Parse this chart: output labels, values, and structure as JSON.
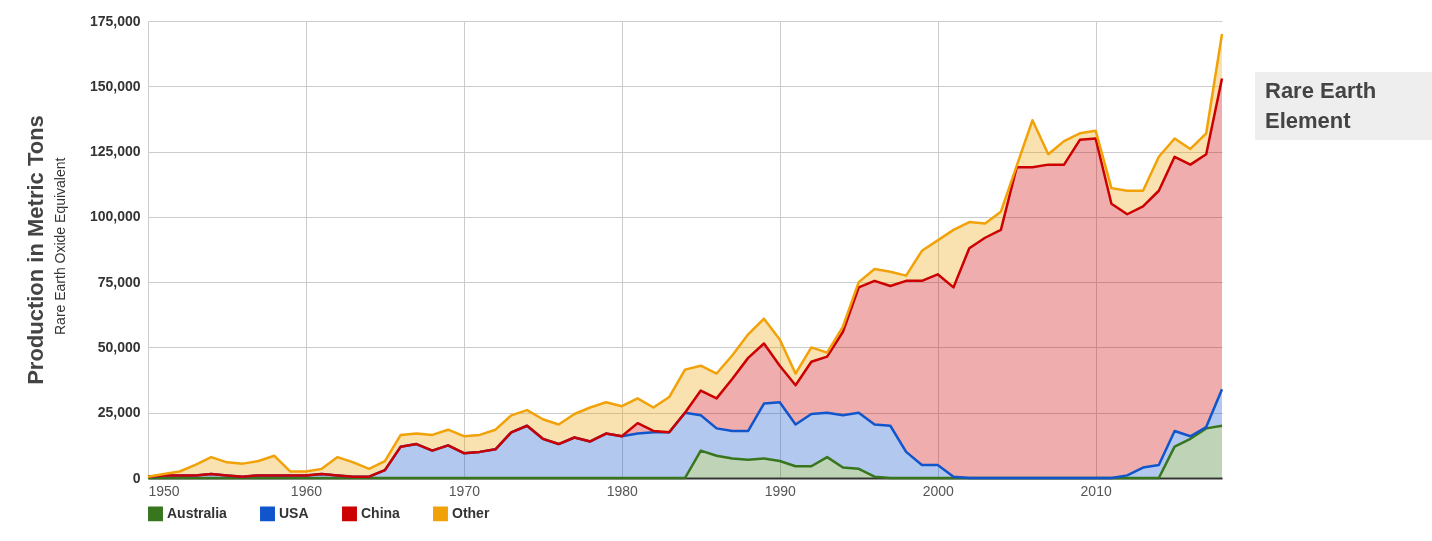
{
  "chart_data": {
    "type": "area",
    "title": "Rare Earth Element",
    "ylabel": "Production in Metric Tons",
    "annotations": [
      "Rare Earth Oxide Equivalent"
    ],
    "stacked": true,
    "grid": true,
    "legend": "bottom",
    "x": [
      1950,
      1951,
      1952,
      1953,
      1954,
      1955,
      1956,
      1957,
      1958,
      1959,
      1960,
      1961,
      1962,
      1963,
      1964,
      1965,
      1966,
      1967,
      1968,
      1969,
      1970,
      1971,
      1972,
      1973,
      1974,
      1975,
      1976,
      1977,
      1978,
      1979,
      1980,
      1981,
      1982,
      1983,
      1984,
      1985,
      1986,
      1987,
      1988,
      1989,
      1990,
      1991,
      1992,
      1993,
      1994,
      1995,
      1996,
      1997,
      1998,
      1999,
      2000,
      2001,
      2002,
      2003,
      2004,
      2005,
      2006,
      2007,
      2008,
      2009,
      2010,
      2011,
      2012,
      2013,
      2014,
      2015,
      2016,
      2017,
      2018
    ],
    "xlim": [
      1950,
      2018
    ],
    "xticks": [
      1950,
      1960,
      1970,
      1980,
      1990,
      2000,
      2010
    ],
    "ylim": [
      0,
      175000
    ],
    "yticks": [
      {
        "value": 0,
        "label": "0"
      },
      {
        "value": 25000,
        "label": "25,000"
      },
      {
        "value": 50000,
        "label": "50,000"
      },
      {
        "value": 75000,
        "label": "75,000"
      },
      {
        "value": 100000,
        "label": "100,000"
      },
      {
        "value": 125000,
        "label": "125,000"
      },
      {
        "value": 150000,
        "label": "150,000"
      },
      {
        "value": 175000,
        "label": "175,000"
      }
    ],
    "series": [
      {
        "name": "Australia",
        "color": "#38761d",
        "values": [
          0,
          0,
          0,
          0,
          0,
          0,
          0,
          0,
          0,
          0,
          0,
          0,
          0,
          0,
          0,
          0,
          0,
          0,
          0,
          0,
          0,
          0,
          0,
          0,
          0,
          0,
          0,
          0,
          0,
          0,
          0,
          0,
          0,
          0,
          0,
          10500,
          8500,
          7500,
          7000,
          7500,
          6500,
          4500,
          4500,
          8000,
          4000,
          3500,
          500,
          0,
          0,
          0,
          0,
          0,
          0,
          0,
          0,
          0,
          0,
          0,
          0,
          0,
          0,
          0,
          0,
          0,
          0,
          12000,
          15000,
          19000,
          20000
        ]
      },
      {
        "name": "USA",
        "color": "#1155cc",
        "values": [
          500,
          1000,
          1000,
          1000,
          1500,
          1000,
          500,
          1000,
          1000,
          1000,
          1000,
          1500,
          1000,
          500,
          500,
          3000,
          12000,
          13000,
          10500,
          12500,
          9500,
          10000,
          11000,
          17500,
          20000,
          15000,
          13000,
          15500,
          14000,
          17000,
          16000,
          17000,
          17500,
          17500,
          25000,
          13500,
          10500,
          10500,
          11000,
          21000,
          22500,
          16000,
          20000,
          17000,
          20000,
          21500,
          20000,
          20000,
          10000,
          5000,
          5000,
          500,
          0,
          0,
          0,
          0,
          0,
          0,
          0,
          0,
          0,
          0,
          1000,
          4000,
          5000,
          6000,
          1000,
          500,
          14000
        ]
      },
      {
        "name": "China",
        "color": "#cc0000",
        "values": [
          0,
          0,
          0,
          0,
          0,
          0,
          0,
          0,
          0,
          0,
          0,
          0,
          0,
          0,
          0,
          0,
          0,
          0,
          0,
          0,
          0,
          0,
          0,
          0,
          0,
          0,
          0,
          0,
          0,
          0,
          0,
          4000,
          500,
          0,
          0,
          9500,
          11500,
          20000,
          28000,
          23000,
          14000,
          15000,
          20000,
          21500,
          32000,
          48000,
          55000,
          53500,
          65500,
          70500,
          73000,
          72500,
          88000,
          92000,
          95000,
          119000,
          119000,
          120000,
          120000,
          129500,
          130000,
          105000,
          100000,
          100000,
          105000,
          105000,
          104000,
          104500,
          119000
        ]
      },
      {
        "name": "Other",
        "color": "#f1a208",
        "values": [
          0,
          500,
          1500,
          4000,
          6500,
          5000,
          5000,
          5500,
          7500,
          1500,
          1500,
          2000,
          7000,
          5500,
          3000,
          3500,
          4500,
          4000,
          6000,
          6000,
          6500,
          6500,
          7500,
          6500,
          6000,
          7500,
          7500,
          9000,
          13000,
          12000,
          11500,
          9500,
          9000,
          13500,
          16500,
          9500,
          9500,
          9000,
          9000,
          9500,
          10000,
          4500,
          5500,
          1500,
          2000,
          2000,
          4500,
          5500,
          2000,
          11500,
          13000,
          22000,
          10000,
          5500,
          7000,
          500,
          18000,
          4000,
          9000,
          2500,
          3000,
          6000,
          9000,
          6000,
          13000,
          7000,
          6000,
          8000,
          17000
        ]
      }
    ]
  }
}
